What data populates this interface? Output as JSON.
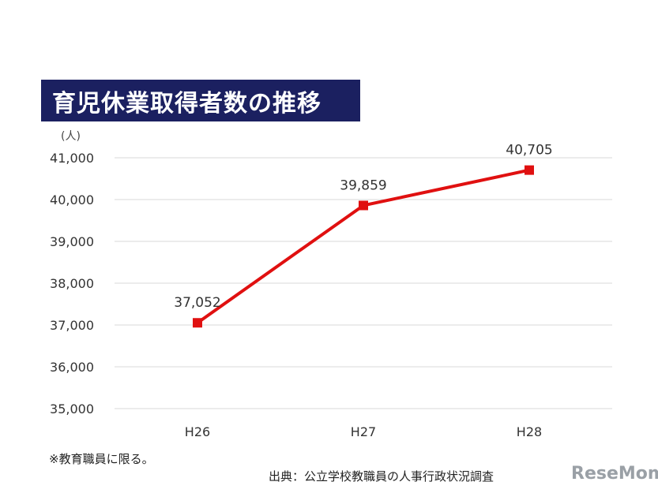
{
  "title": "育児休業取得者数の推移",
  "unit": "(人)",
  "footnote": "※教育職員に限る。",
  "source": "出典：公立学校教職員の人事行政状況調査",
  "logo": "ReseMom",
  "colors": {
    "title_bg": "#1b2060",
    "line": "#e01010",
    "grid": "#d9d9d9"
  },
  "chart_data": {
    "type": "line",
    "title": "育児休業取得者数の推移",
    "xlabel": "",
    "ylabel": "(人)",
    "categories": [
      "H26",
      "H27",
      "H28"
    ],
    "series": [
      {
        "values": [
          37052,
          39859,
          40705
        ],
        "data_labels": [
          "37,052",
          "39,859",
          "40,705"
        ]
      }
    ],
    "ylim": [
      35000,
      41000
    ],
    "yticks": [
      35000,
      36000,
      37000,
      38000,
      39000,
      40000,
      41000
    ],
    "ytick_labels": [
      "35,000",
      "36,000",
      "37,000",
      "38,000",
      "39,000",
      "40,000",
      "41,000"
    ],
    "grid": true,
    "legend": "none"
  }
}
